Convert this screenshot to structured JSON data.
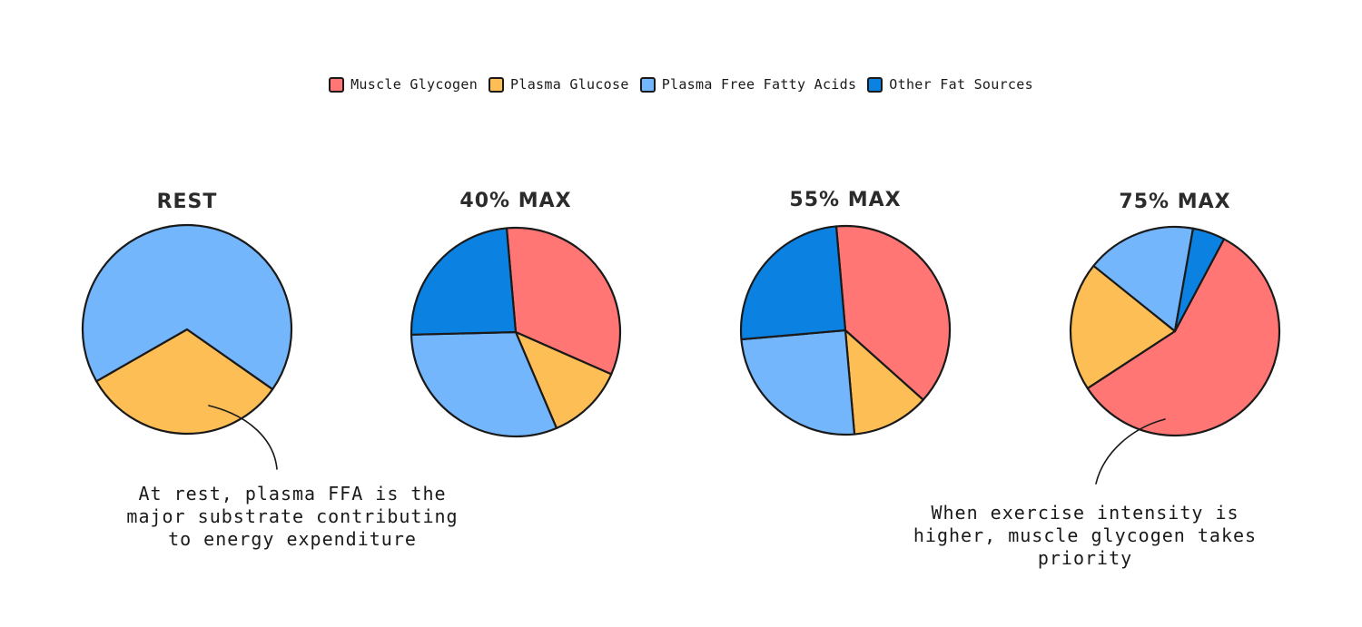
{
  "legend": {
    "items": [
      {
        "label": "Muscle Glycogen",
        "color": "#FF7675"
      },
      {
        "label": "Plasma Glucose",
        "color": "#FDBE55"
      },
      {
        "label": "Plasma Free Fatty Acids",
        "color": "#74B6FC"
      },
      {
        "label": "Other Fat Sources",
        "color": "#0B82E2"
      }
    ]
  },
  "annotations": {
    "rest": "At rest, plasma FFA is the major substrate contributing to energy expenditure",
    "high": "When exercise intensity is higher, muscle glycogen takes priority"
  },
  "chart_data": [
    {
      "type": "pie",
      "title": "REST",
      "labels": [
        "Muscle Glycogen",
        "Plasma Glucose",
        "Plasma Free Fatty Acids",
        "Other Fat Sources"
      ],
      "values": [
        0,
        32,
        68,
        0
      ]
    },
    {
      "type": "pie",
      "title": "40% MAX",
      "labels": [
        "Muscle Glycogen",
        "Plasma Glucose",
        "Plasma Free Fatty Acids",
        "Other Fat Sources"
      ],
      "values": [
        33,
        12,
        31,
        24
      ]
    },
    {
      "type": "pie",
      "title": "55% MAX",
      "labels": [
        "Muscle Glycogen",
        "Plasma Glucose",
        "Plasma Free Fatty Acids",
        "Other Fat Sources"
      ],
      "values": [
        38,
        12,
        25,
        25
      ]
    },
    {
      "type": "pie",
      "title": "75% MAX",
      "labels": [
        "Muscle Glycogen",
        "Plasma Glucose",
        "Plasma Free Fatty Acids",
        "Other Fat Sources"
      ],
      "values": [
        58,
        20,
        17,
        5
      ]
    }
  ]
}
